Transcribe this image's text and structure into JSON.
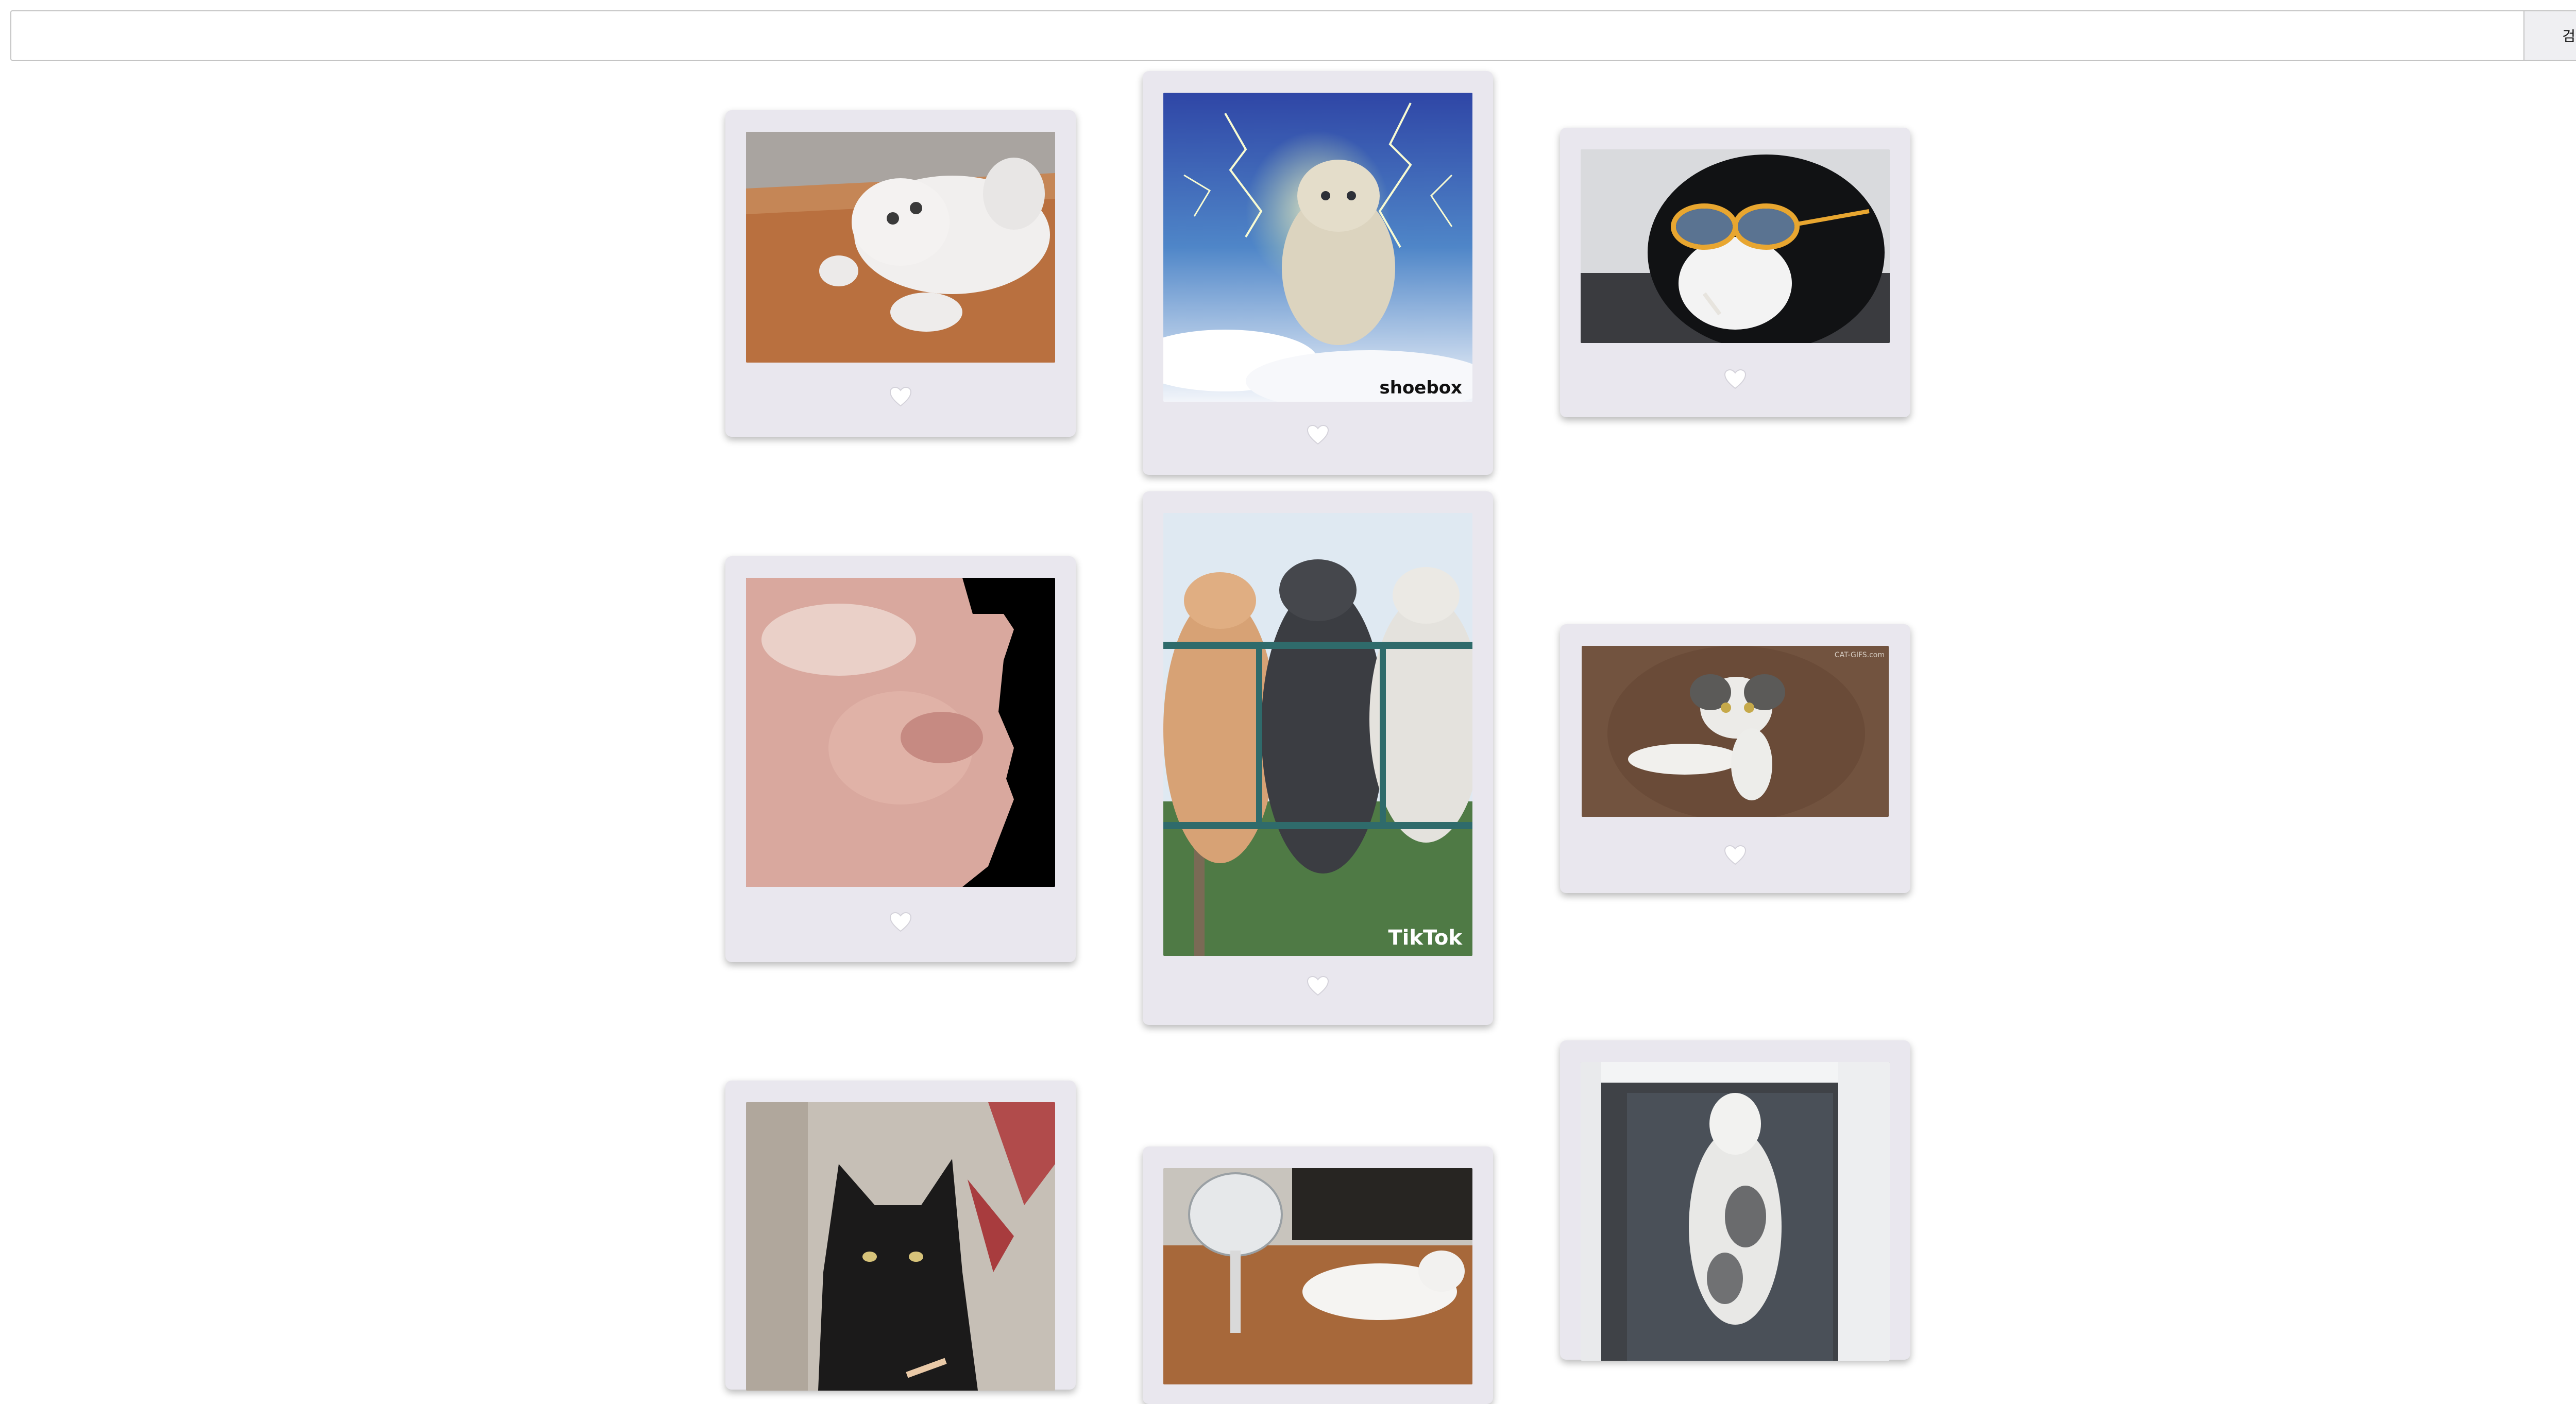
{
  "search": {
    "value": "",
    "placeholder": "",
    "button_label": "검색"
  },
  "cards": [
    {
      "name": "card-white-cat-rolling",
      "image": "white-cat-rolling-photo",
      "liked": false
    },
    {
      "name": "card-cat-lightning",
      "image": "cat-lightning-photo",
      "liked": false,
      "watermark": "shoebox"
    },
    {
      "name": "card-cat-sunglasses",
      "image": "cat-sunglasses-photo",
      "liked": false
    },
    {
      "name": "card-cat-vibing-closeup",
      "image": "cat-vibing-closeup-photo",
      "liked": false
    },
    {
      "name": "card-three-cats-railing",
      "image": "three-cats-railing-photo",
      "liked": false,
      "watermark": "TikTok"
    },
    {
      "name": "card-cat-reaching",
      "image": "cat-reaching-photo",
      "liked": false,
      "watermark": "CAT-GIFS.com"
    },
    {
      "name": "card-black-cat",
      "image": "black-cat-photo",
      "liked": false
    },
    {
      "name": "card-cat-fan",
      "image": "cat-fan-photo",
      "liked": false
    },
    {
      "name": "card-cat-window",
      "image": "cat-window-photo",
      "liked": false
    }
  ],
  "colors": {
    "card_background": "#e9e7ee",
    "heart": "#ffffff",
    "heart_outline": "#d4d2da"
  }
}
